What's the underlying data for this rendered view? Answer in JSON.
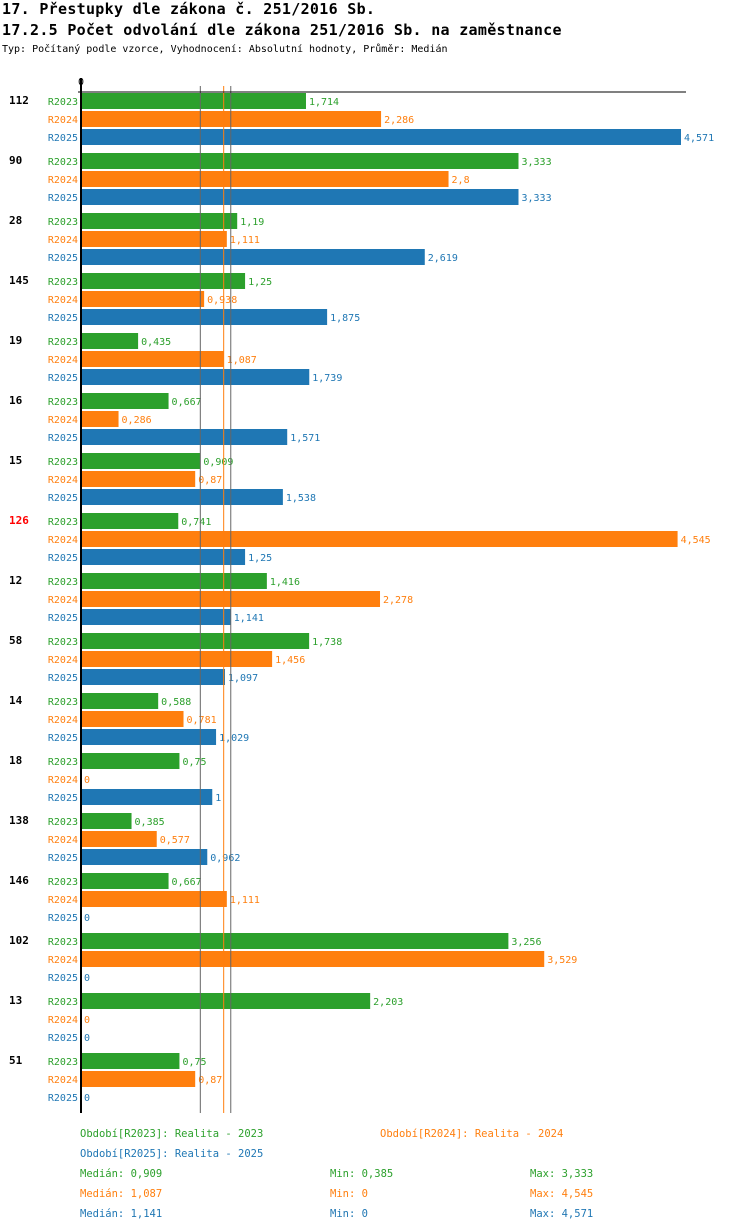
{
  "header": {
    "title": "17. Přestupky dle zákona č. 251/2016 Sb.",
    "subtitle": "17.2.5 Počet odvolání dle zákona 251/2016 Sb. na zaměstnance",
    "info": "Typ: Počítaný podle vzorce, Vyhodnocení: Absolutní hodnoty, Průměr: Medián"
  },
  "chart_data": {
    "type": "bar",
    "orientation": "horizontal",
    "x_tick_label": "0",
    "xlim": [
      0,
      4.571
    ],
    "series_names": [
      "R2023",
      "R2024",
      "R2025"
    ],
    "colors": {
      "R2023": "#2ca02c",
      "R2024": "#ff7f0e",
      "R2025": "#1f77b4",
      "highlight": "#ff0000"
    },
    "groups": [
      {
        "label": "112",
        "values": [
          "1,714",
          "2,286",
          "4,571"
        ]
      },
      {
        "label": "90",
        "values": [
          "3,333",
          "2,8",
          "3,333"
        ]
      },
      {
        "label": "28",
        "values": [
          "1,19",
          "1,111",
          "2,619"
        ]
      },
      {
        "label": "145",
        "values": [
          "1,25",
          "0,938",
          "1,875"
        ]
      },
      {
        "label": "19",
        "values": [
          "0,435",
          "1,087",
          "1,739"
        ]
      },
      {
        "label": "16",
        "values": [
          "0,667",
          "0,286",
          "1,571"
        ]
      },
      {
        "label": "15",
        "values": [
          "0,909",
          "0,87",
          "1,538"
        ]
      },
      {
        "label": "126",
        "highlight": true,
        "values": [
          "0,741",
          "4,545",
          "1,25"
        ]
      },
      {
        "label": "12",
        "values": [
          "1,416",
          "2,278",
          "1,141"
        ]
      },
      {
        "label": "58",
        "values": [
          "1,738",
          "1,456",
          "1,097"
        ]
      },
      {
        "label": "14",
        "values": [
          "0,588",
          "0,781",
          "1,029"
        ]
      },
      {
        "label": "18",
        "values": [
          "0,75",
          "0",
          "1"
        ]
      },
      {
        "label": "138",
        "values": [
          "0,385",
          "0,577",
          "0,962"
        ]
      },
      {
        "label": "146",
        "values": [
          "0,667",
          "1,111",
          "0"
        ]
      },
      {
        "label": "102",
        "values": [
          "3,256",
          "3,529",
          "0"
        ]
      },
      {
        "label": "13",
        "values": [
          "2,203",
          "0",
          "0"
        ]
      },
      {
        "label": "51",
        "values": [
          "0,75",
          "0,87",
          "0"
        ]
      }
    ],
    "medians": [
      0.909,
      1.087,
      1.141
    ]
  },
  "legend": {
    "periods": [
      "Období[R2023]: Realita - 2023",
      "Období[R2024]: Realita - 2024",
      "Období[R2025]: Realita - 2025"
    ],
    "stats": [
      {
        "median": "Medián: 0,909",
        "min": "Min: 0,385",
        "max": "Max: 3,333"
      },
      {
        "median": "Medián: 1,087",
        "min": "Min: 0",
        "max": "Max: 4,545"
      },
      {
        "median": "Medián: 1,141",
        "min": "Min: 0",
        "max": "Max: 4,571"
      }
    ]
  }
}
